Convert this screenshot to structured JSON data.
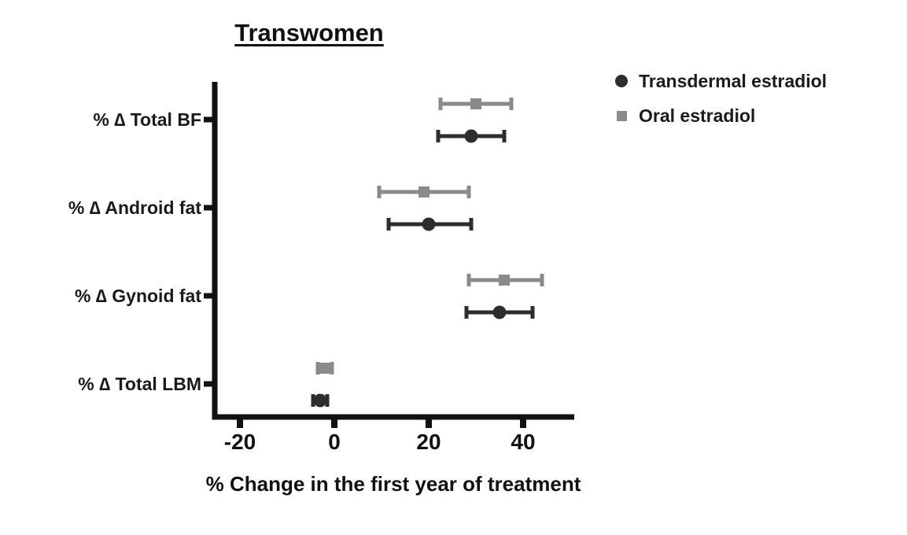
{
  "title": "Transwomen",
  "chart_data": {
    "type": "scatter",
    "subtype": "horizontal-dot-plot-with-error-bars",
    "title": "Transwomen",
    "xlabel": "% Change in the first year of treatment",
    "ylabel": "",
    "xticks": [
      -20,
      0,
      20,
      40
    ],
    "xlim": [
      -25.5,
      51
    ],
    "grid": false,
    "legend_position": "top-right",
    "categories": [
      "% ∆ Total BF",
      "% ∆ Android fat",
      "% ∆ Gynoid fat",
      "% ∆ Total LBM"
    ],
    "series": [
      {
        "name": "Transdermal estradiol",
        "marker": "circle",
        "color": "#2d2d2d",
        "points": [
          {
            "category": "% ∆ Total BF",
            "value": 29,
            "lo": 22,
            "hi": 36
          },
          {
            "category": "% ∆ Android fat",
            "value": 20,
            "lo": 11.5,
            "hi": 29
          },
          {
            "category": "% ∆ Gynoid fat",
            "value": 35,
            "lo": 28,
            "hi": 42
          },
          {
            "category": "% ∆ Total LBM",
            "value": -3,
            "lo": -4.5,
            "hi": -1.5
          }
        ]
      },
      {
        "name": "Oral estradiol",
        "marker": "square",
        "color": "#8a8a8a",
        "points": [
          {
            "category": "% ∆ Total BF",
            "value": 30,
            "lo": 22.5,
            "hi": 37.5
          },
          {
            "category": "% ∆ Android fat",
            "value": 19,
            "lo": 9.5,
            "hi": 28.5
          },
          {
            "category": "% ∆ Gynoid fat",
            "value": 36,
            "lo": 28.5,
            "hi": 44
          },
          {
            "category": "% ∆ Total LBM",
            "value": -2,
            "lo": -3.5,
            "hi": -0.5
          }
        ]
      }
    ],
    "axis_color": "#111111"
  }
}
